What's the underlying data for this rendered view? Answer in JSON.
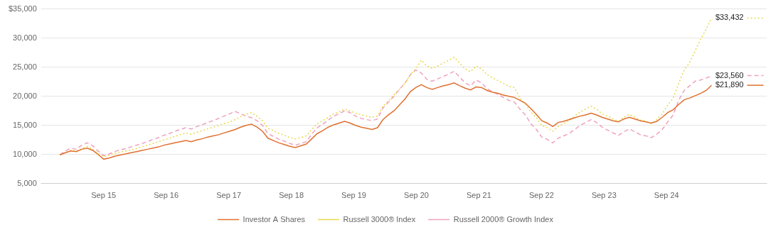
{
  "chart_data": {
    "type": "line",
    "x": [
      2014.3,
      2014.3876,
      2014.4751,
      2014.5627,
      2014.6503,
      2014.7378,
      2014.8254,
      2014.9129,
      2015.0005,
      2015.0881,
      2015.1756,
      2015.2632,
      2015.3508,
      2015.4383,
      2015.5259,
      2015.6134,
      2015.701,
      2015.7886,
      2015.8761,
      2015.9637,
      2016.0513,
      2016.1388,
      2016.2264,
      2016.3139,
      2016.4015,
      2016.4891,
      2016.5766,
      2016.6642,
      2016.7518,
      2016.8393,
      2016.9269,
      2017.0145,
      2017.102,
      2017.1896,
      2017.2771,
      2017.3647,
      2017.4523,
      2017.5398,
      2017.6274,
      2017.715,
      2017.8025,
      2017.8901,
      2017.9776,
      2018.0652,
      2018.1528,
      2018.2403,
      2018.3279,
      2018.4155,
      2018.503,
      2018.5906,
      2018.6782,
      2018.7657,
      2018.8533,
      2018.9408,
      2019.0284,
      2019.116,
      2019.2035,
      2019.2911,
      2019.3787,
      2019.4662,
      2019.5538,
      2019.6413,
      2019.7289,
      2019.8165,
      2019.904,
      2019.9916,
      2020.0792,
      2020.1667,
      2020.2543,
      2020.3418,
      2020.4294,
      2020.517,
      2020.6045,
      2020.6921,
      2020.7797,
      2020.8672,
      2020.9548,
      2021.0424,
      2021.1299,
      2021.2175,
      2021.305,
      2021.3926,
      2021.4802,
      2021.5677,
      2021.6553,
      2021.7429,
      2021.8304,
      2021.918,
      2022.0055,
      2022.0931,
      2022.1807,
      2022.2682,
      2022.3558,
      2022.4434,
      2022.5309,
      2022.6185,
      2022.7061,
      2022.7936,
      2022.8812,
      2022.9687,
      2023.0563,
      2023.1439,
      2023.2314,
      2023.319,
      2023.4066,
      2023.4941,
      2023.5817,
      2023.6692,
      2023.7568,
      2023.8444,
      2023.9319,
      2024.0195,
      2024.1071,
      2024.1946,
      2024.2822,
      2024.3697,
      2024.4573,
      2024.5449,
      2024.6324,
      2024.72
    ],
    "series": [
      {
        "name": "Investor A Shares",
        "color": "#E07030",
        "line_style": "solid",
        "values": [
          9950,
          10300,
          10600,
          10500,
          10900,
          11100,
          10700,
          10000,
          9200,
          9400,
          9700,
          9900,
          10100,
          10300,
          10500,
          10700,
          10900,
          11100,
          11300,
          11600,
          11800,
          12000,
          12200,
          12400,
          12200,
          12500,
          12700,
          13000,
          13200,
          13400,
          13700,
          14000,
          14300,
          14700,
          15000,
          15200,
          14700,
          14000,
          12800,
          12400,
          12000,
          11700,
          11400,
          11200,
          11500,
          11800,
          12700,
          13600,
          14100,
          14700,
          15100,
          15400,
          15700,
          15400,
          15000,
          14700,
          14500,
          14300,
          14600,
          16000,
          16800,
          17500,
          18500,
          19500,
          20800,
          21500,
          22000,
          21500,
          21200,
          21500,
          21800,
          22000,
          22300,
          21800,
          21400,
          21100,
          21600,
          21500,
          21000,
          20700,
          20500,
          20200,
          20000,
          19800,
          19300,
          18800,
          17900,
          16900,
          15800,
          15400,
          14800,
          15500,
          15700,
          16000,
          16300,
          16600,
          16800,
          17100,
          16800,
          16400,
          16100,
          15800,
          15600,
          16100,
          16400,
          16100,
          15800,
          15600,
          15400,
          15700,
          16400,
          17200,
          17700,
          18600,
          19400,
          19700,
          20100,
          20500,
          21000,
          21890
        ]
      },
      {
        "name": "Russell 3000® Index",
        "color": "#E8D84A",
        "line_style": "dotted",
        "values": [
          9950,
          10300,
          10700,
          10600,
          11000,
          11400,
          10900,
          10200,
          9600,
          9900,
          10200,
          10400,
          10600,
          10800,
          11000,
          11300,
          11600,
          11900,
          12200,
          12500,
          12800,
          13100,
          13400,
          13700,
          13500,
          13800,
          14100,
          14400,
          14700,
          15000,
          15300,
          15600,
          16000,
          16500,
          16900,
          17200,
          16600,
          15800,
          14500,
          14100,
          13600,
          13300,
          12900,
          12700,
          12900,
          13200,
          14300,
          15300,
          15800,
          16400,
          17000,
          17300,
          17800,
          17500,
          17100,
          16800,
          16600,
          16400,
          16600,
          18300,
          19200,
          20200,
          21200,
          22200,
          23700,
          24700,
          26200,
          25200,
          24800,
          25200,
          25700,
          26200,
          26700,
          25700,
          24700,
          24200,
          25200,
          24700,
          23700,
          23200,
          22700,
          22200,
          21700,
          21500,
          19700,
          18700,
          17300,
          16300,
          15000,
          14600,
          14000,
          14800,
          15300,
          15800,
          16600,
          17300,
          17800,
          18300,
          17800,
          17000,
          16600,
          16100,
          15700,
          16400,
          16900,
          16400,
          15900,
          15700,
          15300,
          16000,
          17000,
          18500,
          19700,
          22200,
          24500,
          25800,
          27800,
          29800,
          31500,
          33432
        ]
      },
      {
        "name": "Russell 2000® Growth Index",
        "color": "#F0A0C0",
        "line_style": "dashed",
        "values": [
          9950,
          10600,
          11100,
          10900,
          11600,
          12000,
          11500,
          10600,
          9800,
          10100,
          10500,
          10800,
          11000,
          11300,
          11600,
          11900,
          12200,
          12600,
          12900,
          13300,
          13600,
          14000,
          14300,
          14600,
          14400,
          14800,
          15100,
          15500,
          15800,
          16200,
          16600,
          17000,
          17400,
          17000,
          16600,
          16300,
          15800,
          15000,
          13600,
          13100,
          12600,
          12300,
          11900,
          11600,
          11900,
          12200,
          13500,
          14600,
          15200,
          15900,
          16600,
          17000,
          17500,
          17200,
          16600,
          16200,
          16000,
          15800,
          16100,
          18000,
          19000,
          20000,
          21200,
          22200,
          23700,
          24500,
          24000,
          22900,
          22600,
          23000,
          23400,
          23800,
          24300,
          23300,
          22300,
          21800,
          22800,
          22300,
          21300,
          20800,
          20300,
          19800,
          19300,
          19000,
          17800,
          16800,
          15300,
          14300,
          13000,
          12600,
          12000,
          12800,
          13200,
          13600,
          14300,
          15000,
          15500,
          16000,
          15500,
          14700,
          14200,
          13700,
          13300,
          13900,
          14400,
          13900,
          13400,
          13200,
          12900,
          13500,
          14300,
          15600,
          16800,
          19300,
          21000,
          21800,
          22600,
          22800,
          23100,
          23560
        ]
      }
    ],
    "annotations": [
      {
        "text": "$33,432",
        "x": 2024.78,
        "y": 33432,
        "series": "Russell 3000® Index"
      },
      {
        "text": "$23,560",
        "x": 2024.78,
        "y": 23560,
        "series": "Russell 2000® Growth Index"
      },
      {
        "text": "$21,890",
        "x": 2024.78,
        "y": 21890,
        "series": "Investor A Shares"
      }
    ],
    "xlim": [
      2014.0,
      2025.6
    ],
    "xticks": [
      {
        "value": 2015,
        "label": "Sep 15"
      },
      {
        "value": 2016,
        "label": "Sep 16"
      },
      {
        "value": 2017,
        "label": "Sep 17"
      },
      {
        "value": 2018,
        "label": "Sep 18"
      },
      {
        "value": 2019,
        "label": "Sep 19"
      },
      {
        "value": 2020,
        "label": "Sep 20"
      },
      {
        "value": 2021,
        "label": "Sep 21"
      },
      {
        "value": 2022,
        "label": "Sep 22"
      },
      {
        "value": 2023,
        "label": "Sep 23"
      },
      {
        "value": 2024,
        "label": "Sep 24"
      }
    ],
    "ylim": [
      5000,
      35000
    ],
    "yticks": [
      {
        "value": 5000,
        "label": "5,000"
      },
      {
        "value": 10000,
        "label": "10,000"
      },
      {
        "value": 15000,
        "label": "15,000"
      },
      {
        "value": 20000,
        "label": "20,000"
      },
      {
        "value": 25000,
        "label": "25,000"
      },
      {
        "value": 30000,
        "label": "30,000"
      },
      {
        "value": 35000,
        "label": "$35,000"
      }
    ],
    "grid": "y",
    "legend": "bottom"
  }
}
